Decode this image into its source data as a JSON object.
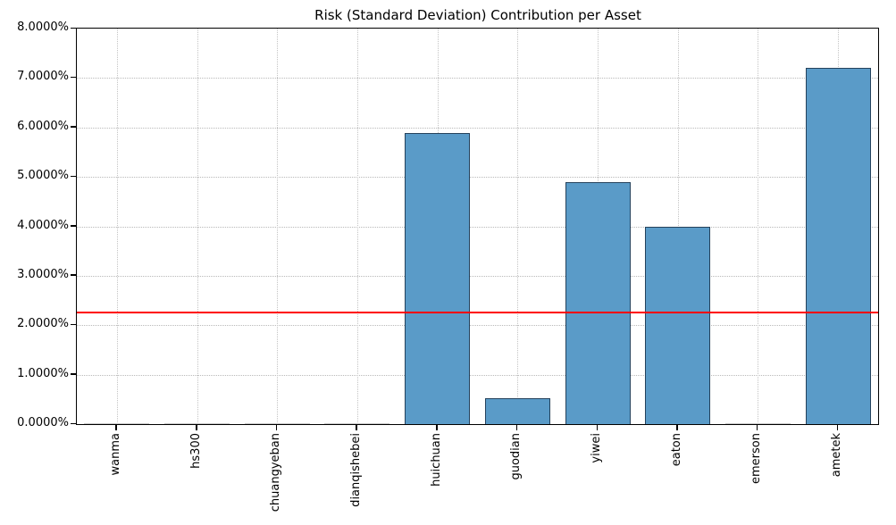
{
  "figure": {
    "background": "#ffffff"
  },
  "chart_data": {
    "type": "bar",
    "title": "Risk (Standard Deviation) Contribution per Asset",
    "categories": [
      "wanma",
      "hs300",
      "chuangyeban",
      "dianqishebei",
      "huichuan",
      "guodian",
      "yiwei",
      "eaton",
      "emerson",
      "ametek"
    ],
    "values": [
      0.0,
      0.0,
      0.0,
      0.0,
      5.88,
      0.52,
      4.9,
      4.0,
      0.0,
      7.21
    ],
    "value_unit": "%",
    "xlabel": "",
    "ylabel": "",
    "ylim": [
      0,
      8
    ],
    "ytick_labels": [
      "0.0000%",
      "1.0000%",
      "2.0000%",
      "3.0000%",
      "4.0000%",
      "5.0000%",
      "6.0000%",
      "7.0000%",
      "8.0000%"
    ],
    "grid": "dotted, horizontal and vertical",
    "legend": "none",
    "reference_line": {
      "value": 2.25,
      "color": "#ff0000",
      "meaning": "mean risk contribution level"
    },
    "bar_color": "#5a9bc8",
    "bar_edge_color": "#25425c",
    "zero_bar_color": "#c8c8c8",
    "axis_color": "#000000"
  }
}
